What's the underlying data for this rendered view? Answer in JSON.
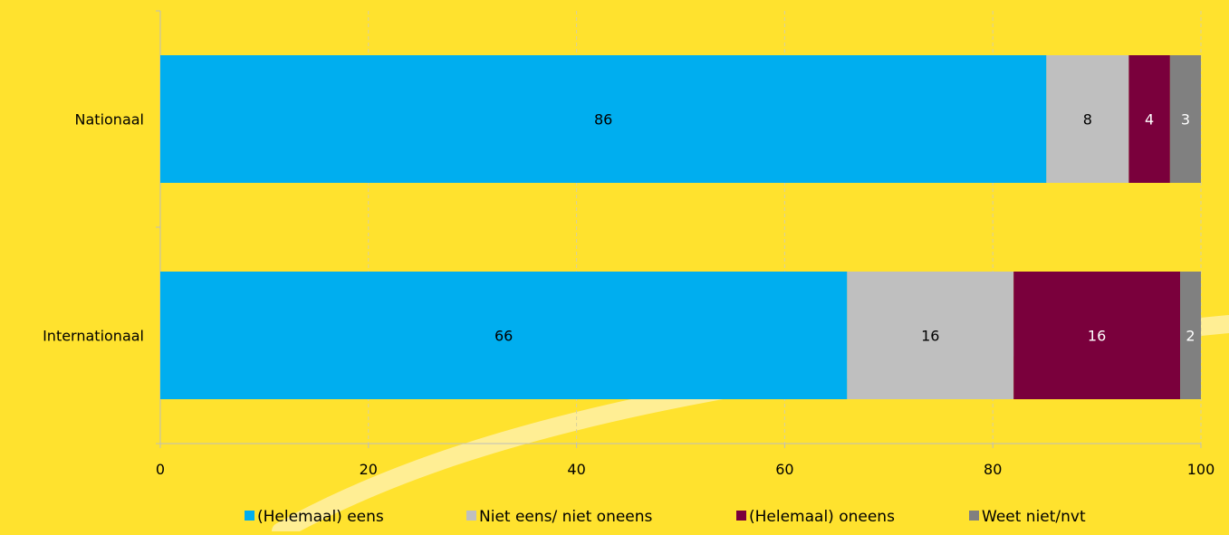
{
  "colors": {
    "background": "#FFE22E",
    "swoosh": "#FFF0A6",
    "grid": "#D9D0A0",
    "axis": "#BDBDBD"
  },
  "chart_data": {
    "type": "bar",
    "orientation": "horizontal",
    "stacked": true,
    "categories": [
      "Nationaal",
      "Internationaal"
    ],
    "series": [
      {
        "name": "(Helemaal) eens",
        "color": "#00AEEF",
        "label_color": "#000000",
        "values": [
          86,
          66
        ]
      },
      {
        "name": "Niet eens/ niet oneens",
        "color": "#BFBFBF",
        "label_color": "#000000",
        "values": [
          8,
          16
        ]
      },
      {
        "name": "(Helemaal) oneens",
        "color": "#7A003C",
        "label_color": "#FFFFFF",
        "values": [
          4,
          16
        ]
      },
      {
        "name": "Weet niet/nvt",
        "color": "#808080",
        "label_color": "#FFFFFF",
        "values": [
          3,
          2
        ]
      }
    ],
    "data_labels": [
      [
        "86",
        "8",
        "4",
        "3"
      ],
      [
        "66",
        "16",
        "16",
        "2"
      ]
    ],
    "xlim": [
      0,
      100
    ],
    "xticks": [
      0,
      20,
      40,
      60,
      80,
      100
    ],
    "xlabel": "",
    "ylabel": "",
    "grid": "vertical dashed",
    "legend_position": "bottom"
  }
}
